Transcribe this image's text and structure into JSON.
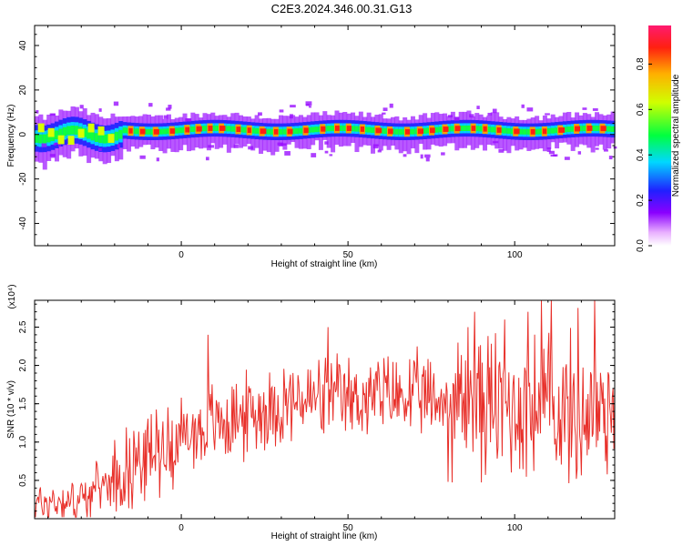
{
  "title": "C2E3.2024.346.00.31.G13",
  "colors": {
    "snr_line": "#e8302a",
    "axis": "#000000"
  },
  "chart_data": [
    {
      "type": "heatmap",
      "xlabel": "Height of straight line (km)",
      "ylabel": "Frequency (Hz)",
      "xlim": [
        -44,
        130
      ],
      "ylim": [
        -50,
        49
      ],
      "xticks": [
        0,
        50,
        100
      ],
      "yticks": [
        -40,
        -20,
        0,
        20,
        40
      ],
      "colorbar": {
        "label": "Normalized spectral amplitude",
        "range": [
          0,
          0.97
        ],
        "ticks": [
          "0.0",
          "0.2",
          "0.4",
          "0.6",
          "0.8"
        ]
      },
      "band": {
        "center_freq_hz": 2,
        "half_width_hz": 5,
        "early_center_freq_hz": 0,
        "early_x_end_km": -18
      }
    },
    {
      "type": "line",
      "xlabel": "Height of straight line (km)",
      "ylabel": "SNR (10 * v/v)",
      "multiplier": "(x10⁴)",
      "xlim": [
        -44,
        130
      ],
      "ylim": [
        0,
        2.85
      ],
      "xticks": [
        0,
        50,
        100
      ],
      "yticks": [
        "0.5",
        "1.0",
        "1.5",
        "2.0",
        "2.5"
      ],
      "trend": {
        "x": [
          -44,
          -30,
          -20,
          -10,
          0,
          10,
          20,
          30,
          40,
          50,
          60,
          70,
          80,
          90,
          100,
          110,
          120,
          130
        ],
        "y": [
          0.2,
          0.25,
          0.55,
          0.85,
          1.05,
          1.25,
          1.35,
          1.5,
          1.55,
          1.55,
          1.6,
          1.6,
          1.5,
          1.5,
          1.45,
          1.45,
          1.35,
          1.5
        ]
      },
      "peaks": [
        {
          "x": 8,
          "y": 2.4
        },
        {
          "x": 44,
          "y": 2.5
        },
        {
          "x": 86,
          "y": 2.5
        },
        {
          "x": 88,
          "y": 2.7
        },
        {
          "x": 97,
          "y": 2.6
        },
        {
          "x": 104,
          "y": 2.7
        },
        {
          "x": 108,
          "y": 2.85
        },
        {
          "x": 111,
          "y": 2.85
        },
        {
          "x": 119,
          "y": 2.75
        },
        {
          "x": 124,
          "y": 2.85
        }
      ]
    }
  ]
}
